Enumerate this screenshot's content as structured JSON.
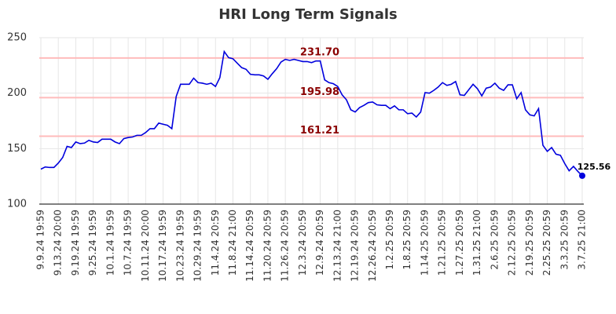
{
  "chart_data": {
    "type": "line",
    "title": "HRI Long Term Signals",
    "categories": [
      "9.9.24 19:59",
      null,
      null,
      null,
      "9.13.24 20:00",
      null,
      null,
      null,
      "9.19.24 19:59",
      null,
      null,
      null,
      "9.25.24 19:59",
      null,
      null,
      null,
      "10.1.24 19:59",
      null,
      null,
      null,
      "10.7.24 19:59",
      null,
      null,
      null,
      "10.11.24 20:00",
      null,
      null,
      null,
      "10.17.24 19:59",
      null,
      null,
      null,
      "10.23.24 19:59",
      null,
      null,
      null,
      "10.29.24 19:59",
      null,
      null,
      null,
      "11.4.24 20:59",
      null,
      null,
      null,
      "11.8.24 21:00",
      null,
      null,
      null,
      "11.14.24 20:59",
      null,
      null,
      null,
      "11.20.24 20:59",
      null,
      null,
      null,
      "11.26.24 20:59",
      null,
      null,
      null,
      "12.3.24 20:59",
      null,
      null,
      null,
      "12.9.24 20:59",
      null,
      null,
      null,
      "12.13.24 21:00",
      null,
      null,
      null,
      "12.19.24 20:59",
      null,
      null,
      null,
      "12.26.24 20:59",
      null,
      null,
      null,
      "1.2.25 20:59",
      null,
      null,
      null,
      "1.8.25 20:59",
      null,
      null,
      null,
      "1.14.25 20:59",
      null,
      null,
      null,
      "1.21.25 20:59",
      null,
      null,
      null,
      "1.27.25 20:59",
      null,
      null,
      null,
      "1.31.25 21:00",
      null,
      null,
      null,
      "2.6.25 20:59",
      null,
      null,
      null,
      "2.12.25 20:59",
      null,
      null,
      null,
      "2.19.25 20:59",
      null,
      null,
      null,
      "2.25.25 20:59",
      null,
      null,
      null,
      "3.3.25 20:59",
      null,
      null,
      null,
      "3.7.25 21:00"
    ],
    "values": [
      131.5,
      133.5,
      133,
      133,
      137,
      142,
      152,
      151,
      156,
      154.5,
      155,
      157.5,
      156,
      155.5,
      158.5,
      158.5,
      158.5,
      156,
      154.5,
      159,
      160,
      160.5,
      162,
      162,
      164.5,
      168,
      168,
      173,
      172,
      171,
      168,
      197,
      208,
      208,
      208,
      213.5,
      209.5,
      209,
      208,
      209,
      206,
      214,
      237.5,
      232,
      231,
      227,
      223,
      221.5,
      217,
      216.5,
      216.5,
      215.5,
      212.5,
      217.5,
      222,
      228,
      230.5,
      229.5,
      230.5,
      229.5,
      228.5,
      228.5,
      227.5,
      229,
      229,
      212,
      209.5,
      208.5,
      206,
      198.5,
      194,
      185,
      183,
      187,
      189,
      191.5,
      192,
      189.5,
      189,
      189,
      186,
      188.5,
      185,
      185,
      181.5,
      182,
      178.5,
      183,
      200.5,
      200,
      202.5,
      205.5,
      209.5,
      207,
      208,
      210.5,
      198.5,
      198,
      203,
      208,
      204,
      197.5,
      204.5,
      205.5,
      209,
      204.5,
      202.5,
      207.5,
      207.5,
      195,
      200.5,
      185,
      180.5,
      179.5,
      186,
      153,
      147.5,
      151,
      145,
      144,
      136.5,
      130,
      134,
      129.5,
      125.56
    ],
    "color": "#0000dd",
    "signals": [
      {
        "value": 231.7,
        "label": "231.70"
      },
      {
        "value": 195.98,
        "label": "195.98"
      },
      {
        "value": 161.21,
        "label": "161.21"
      }
    ],
    "signal_color": "#ffbbbb",
    "signal_label_color": "#8b0000",
    "ylim": [
      100,
      250
    ],
    "yticks": [
      100,
      150,
      200,
      250
    ],
    "grid": true
  }
}
